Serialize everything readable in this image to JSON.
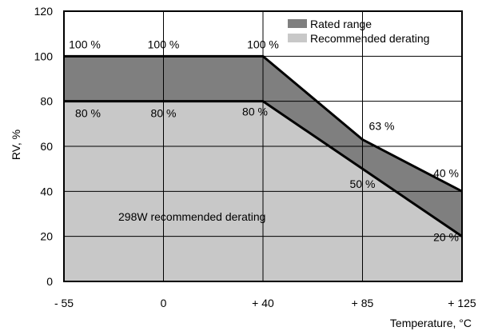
{
  "chart_data": {
    "type": "area",
    "title": "",
    "xlabel": "Temperature, °C",
    "ylabel": "RV, %",
    "x_categories": [
      "- 55",
      "0",
      "+ 40",
      "+ 85",
      "+ 125"
    ],
    "ylim": [
      0,
      120
    ],
    "yticks": [
      0,
      20,
      40,
      60,
      80,
      100,
      120
    ],
    "grid": true,
    "legend_position": "top-right",
    "series": [
      {
        "name": "Rated range",
        "color": "#7f7f7f",
        "x": [
          "- 55",
          "+ 40",
          "+ 85",
          "+ 125"
        ],
        "y": [
          100,
          100,
          63,
          40
        ]
      },
      {
        "name": "Recommended derating",
        "color": "#c8c8c8",
        "x": [
          "- 55",
          "+ 40",
          "+ 85",
          "+ 125"
        ],
        "y": [
          80,
          80,
          50,
          20
        ]
      }
    ],
    "point_labels": [
      {
        "text": "100 %"
      },
      {
        "text": "100 %"
      },
      {
        "text": "100 %"
      },
      {
        "text": "63 %"
      },
      {
        "text": "40 %"
      },
      {
        "text": "80 %"
      },
      {
        "text": "80 %"
      },
      {
        "text": "80 %"
      },
      {
        "text": "50 %"
      },
      {
        "text": "20 %"
      }
    ],
    "annotation": "298W recommended derating"
  }
}
